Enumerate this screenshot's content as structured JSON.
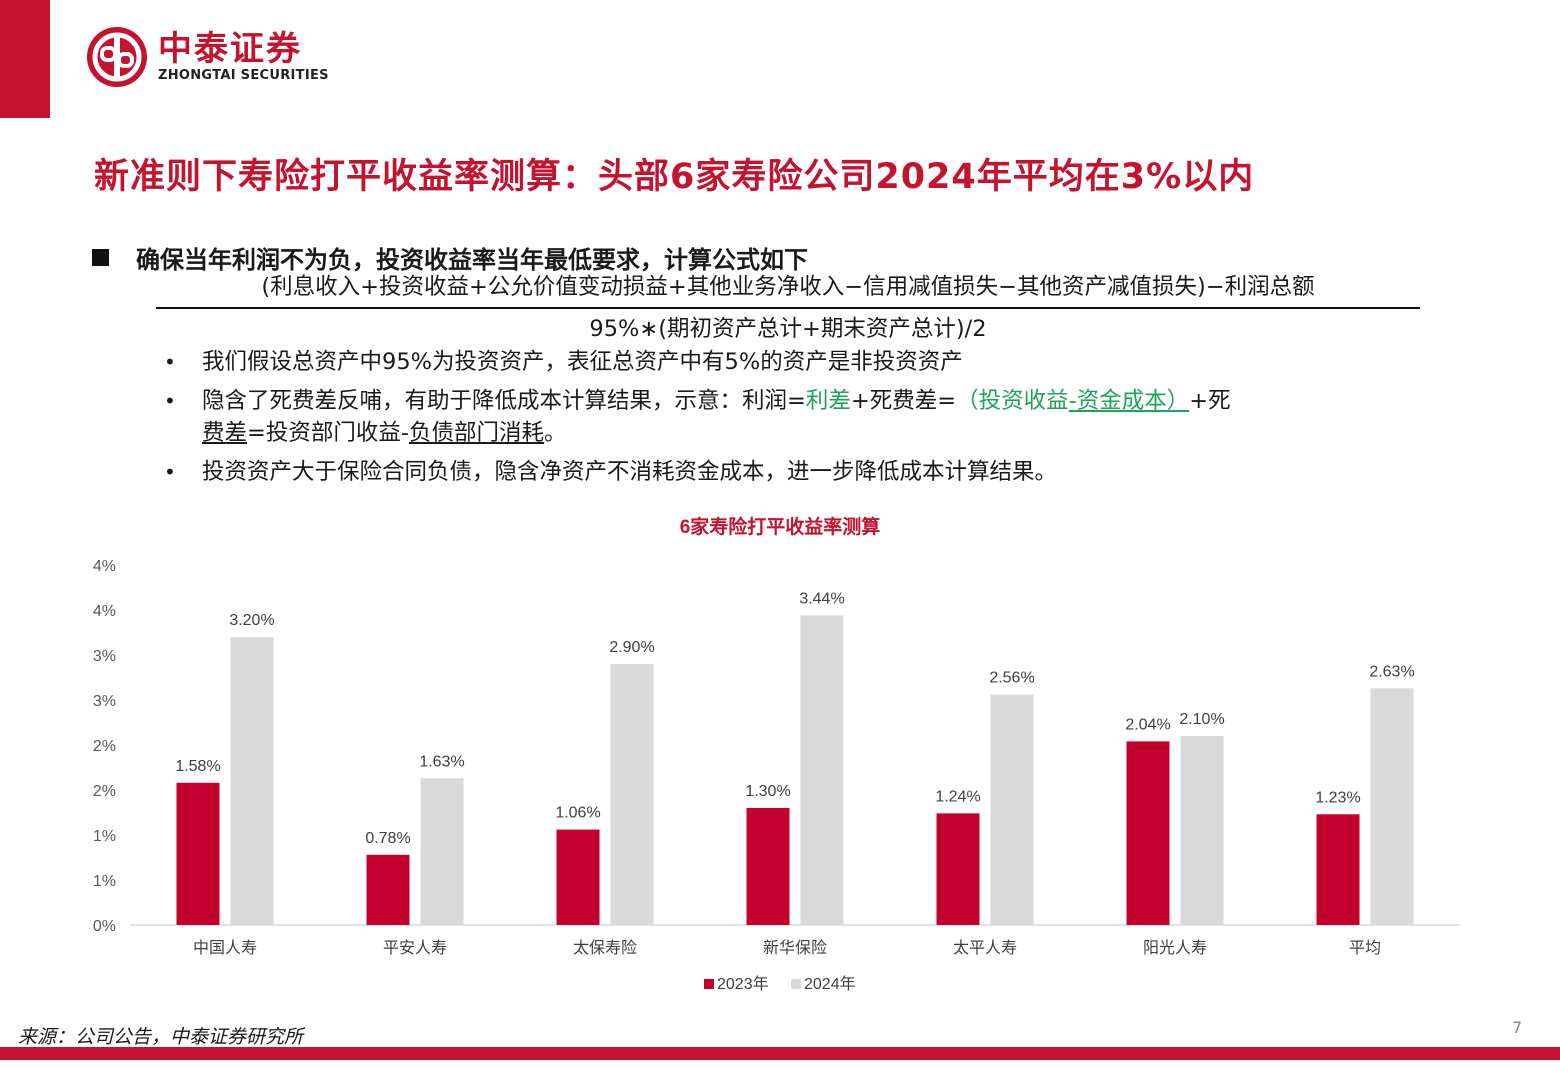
{
  "brand": {
    "name_cn": "中泰证券",
    "name_en": "ZHONGTAI SECURITIES",
    "color": "#c4122f"
  },
  "page_title": "新准则下寿险打平收益率测算：头部6家寿险公司2024年平均在3%以内",
  "main_point": "确保当年利润不为负，投资收益率当年最低要求，计算公式如下",
  "formula": {
    "numerator": "(利息收入+投资收益+公允价值变动损益+其他业务净收入−信用减值损失−其他资产减值损失)−利润总额",
    "denominator": "95%∗(期初资产总计+期末资产总计)/2"
  },
  "bullets": {
    "b1": "我们假设总资产中95%为投资资产，表征总资产中有5%的资产是非投资资产",
    "b2": {
      "t1": "隐含了死费差反哺，有助于降低成本计算结果，示意：利润=",
      "t2": "利差",
      "t3": "+死费差=",
      "t4": "（投资收益",
      "t5": "-资金成本）",
      "t6": "+死",
      "t7": "费差",
      "t8": "=投资部门收益-",
      "t9": "负债部门消耗",
      "t10": "。"
    },
    "b3": "投资资产大于保险合同负债，隐含净资产不消耗资金成本，进一步降低成本计算结果。"
  },
  "chart_data": {
    "type": "bar",
    "title": "6家寿险打平收益率测算",
    "categories": [
      "中国人寿",
      "平安人寿",
      "太保寿险",
      "新华保险",
      "太平人寿",
      "阳光人寿",
      "平均"
    ],
    "series": [
      {
        "name": "2023年",
        "color": "#c4002f",
        "values": [
          1.58,
          0.78,
          1.06,
          1.3,
          1.24,
          2.04,
          1.23
        ],
        "labels": [
          "1.58%",
          "0.78%",
          "1.06%",
          "1.30%",
          "1.24%",
          "2.04%",
          "1.23%"
        ]
      },
      {
        "name": "2024年",
        "color": "#d9d9d9",
        "values": [
          3.2,
          1.63,
          2.9,
          3.44,
          2.56,
          2.1,
          2.63
        ],
        "labels": [
          "3.20%",
          "1.63%",
          "2.90%",
          "3.44%",
          "2.56%",
          "2.10%",
          "2.63%"
        ]
      }
    ],
    "ylim": [
      0,
      4.0
    ],
    "ytick_labels": [
      "0%",
      "1%",
      "1%",
      "2%",
      "2%",
      "3%",
      "3%",
      "4%",
      "4%"
    ],
    "grid": false,
    "legend": "bottom-center"
  },
  "source": "来源：公司公告，中泰证券研究所",
  "page_number": "7"
}
